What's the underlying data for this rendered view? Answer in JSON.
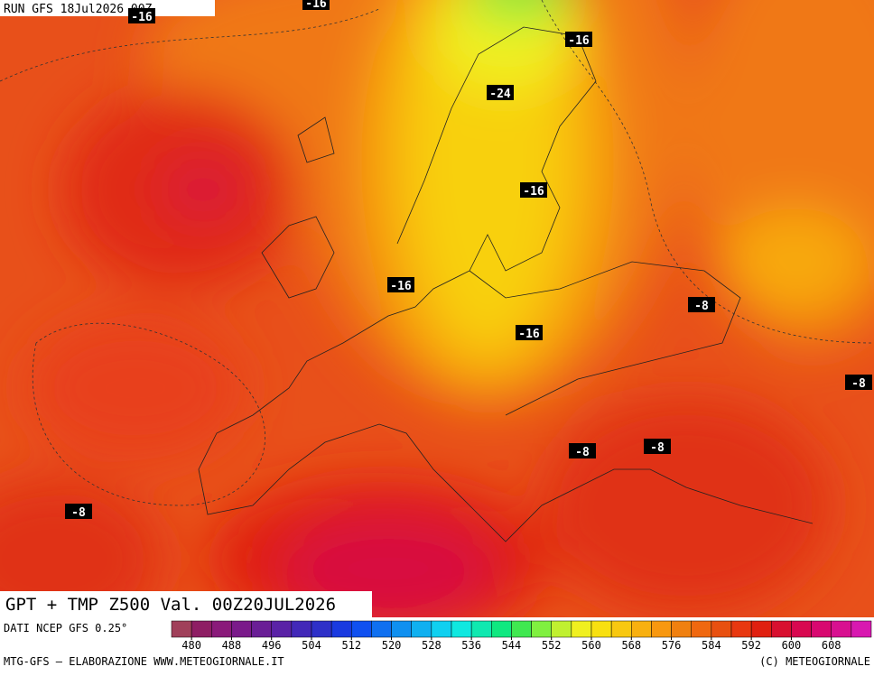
{
  "header": {
    "run": "RUN GFS 18Jul2026 00Z"
  },
  "map": {
    "title": "GPT + TMP Z500 Val. 00Z20JUL2026",
    "contour_labels": [
      "-16",
      "-16",
      "-16",
      "-24",
      "-16",
      "-16",
      "-16",
      "-8",
      "-8",
      "-8",
      "-8",
      "-8"
    ]
  },
  "legend": {
    "source": "DATI NCEP GFS 0.25°",
    "ticks": [
      480,
      488,
      496,
      504,
      512,
      520,
      528,
      536,
      544,
      552,
      560,
      568,
      576,
      584,
      592,
      600,
      608
    ],
    "colors": [
      "#a0405a",
      "#8e1e64",
      "#8a1a7a",
      "#7a1a8a",
      "#6a1e96",
      "#5a22a6",
      "#4228b8",
      "#2e30c8",
      "#1a3ae0",
      "#1050f0",
      "#1070f0",
      "#1090f0",
      "#10b0f0",
      "#10d0f0",
      "#10e8e0",
      "#10e8b0",
      "#10e880",
      "#40e850",
      "#80f040",
      "#c0f030",
      "#f0f020",
      "#f8e010",
      "#f8c810",
      "#f8b010",
      "#f89810",
      "#f08010",
      "#f06810",
      "#e85010",
      "#e83810",
      "#e02010",
      "#d81030",
      "#d80850",
      "#d80870",
      "#d81090",
      "#d818b0"
    ]
  },
  "footer": {
    "credit": "MTG-GFS — ELABORAZIONE WWW.METEOGIORNALE.IT",
    "copyright": "(C) METEOGIORNALE"
  }
}
